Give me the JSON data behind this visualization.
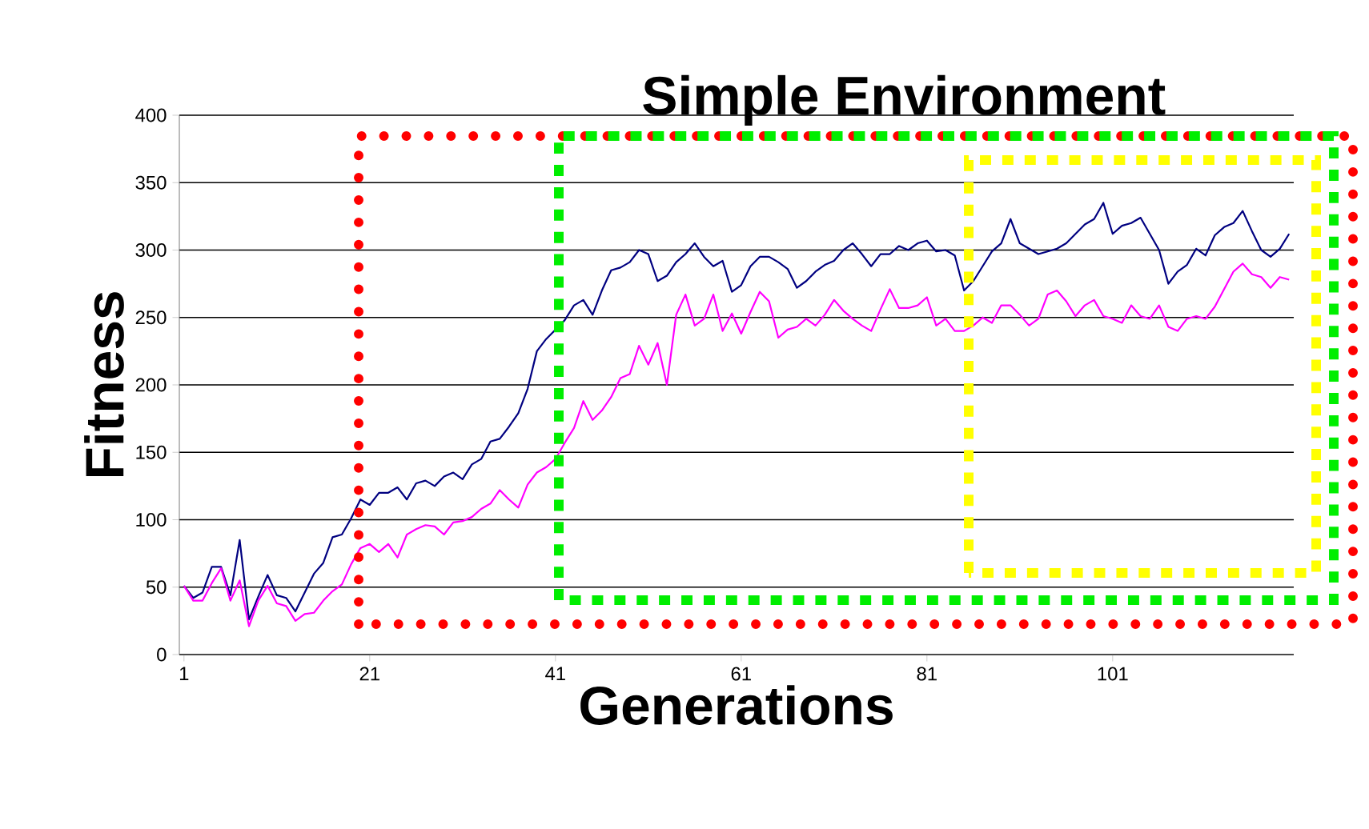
{
  "chart_data": {
    "type": "line",
    "title": "Simple Environment",
    "xlabel": "Generations",
    "ylabel": "Fitness",
    "x": [
      1,
      2,
      3,
      4,
      5,
      6,
      7,
      8,
      9,
      10,
      11,
      12,
      13,
      14,
      15,
      16,
      17,
      18,
      19,
      20,
      21,
      22,
      23,
      24,
      25,
      26,
      27,
      28,
      29,
      30,
      31,
      32,
      33,
      34,
      35,
      36,
      37,
      38,
      39,
      40,
      41,
      42,
      43,
      44,
      45,
      46,
      47,
      48,
      49,
      50,
      51,
      52,
      53,
      54,
      55,
      56,
      57,
      58,
      59,
      60,
      61,
      62,
      63,
      64,
      65,
      66,
      67,
      68,
      69,
      70,
      71,
      72,
      73,
      74,
      75,
      76,
      77,
      78,
      79,
      80,
      81,
      82,
      83,
      84,
      85,
      86,
      87,
      88,
      89,
      90,
      91,
      92,
      93,
      94,
      95,
      96,
      97,
      98,
      99,
      100,
      101,
      102,
      103,
      104,
      105,
      106,
      107,
      108,
      109,
      110,
      111,
      112,
      113,
      114,
      115,
      116,
      117,
      118,
      119,
      120
    ],
    "series": [
      {
        "color": "#000080",
        "values": [
          51,
          42,
          46,
          65,
          65,
          44,
          85,
          26,
          43,
          59,
          44,
          42,
          32,
          46,
          60,
          68,
          87,
          89,
          101,
          115,
          111,
          120,
          120,
          124,
          115,
          127,
          129,
          125,
          132,
          135,
          130,
          141,
          145,
          158,
          160,
          169,
          179,
          197,
          225,
          234,
          241,
          248,
          259,
          263,
          252,
          270,
          285,
          287,
          291,
          300,
          297,
          277,
          281,
          291,
          297,
          305,
          295,
          288,
          292,
          269,
          274,
          288,
          295,
          295,
          291,
          286,
          272,
          277,
          284,
          289,
          292,
          300,
          305,
          297,
          288,
          297,
          297,
          303,
          300,
          305,
          307,
          299,
          300,
          296,
          270,
          277,
          288,
          299,
          305,
          323,
          305,
          301,
          297,
          299,
          301,
          305,
          312,
          319,
          323,
          335,
          312,
          318,
          320,
          324,
          312,
          300,
          275,
          284,
          289,
          301,
          296,
          311,
          317,
          320,
          329,
          314,
          300,
          295,
          301,
          312
        ]
      },
      {
        "color": "#ff00ff",
        "values": [
          51,
          40,
          40,
          53,
          64,
          40,
          55,
          21,
          40,
          51,
          38,
          36,
          25,
          30,
          31,
          40,
          47,
          52,
          67,
          79,
          82,
          76,
          82,
          72,
          89,
          93,
          96,
          95,
          89,
          98,
          99,
          102,
          108,
          112,
          122,
          115,
          109,
          126,
          135,
          139,
          145,
          157,
          168,
          188,
          174,
          181,
          191,
          205,
          208,
          229,
          215,
          231,
          200,
          252,
          267,
          244,
          249,
          267,
          240,
          253,
          238,
          254,
          269,
          262,
          235,
          241,
          243,
          249,
          244,
          252,
          263,
          255,
          249,
          244,
          240,
          256,
          271,
          257,
          257,
          259,
          265,
          244,
          249,
          240,
          240,
          244,
          250,
          246,
          259,
          259,
          252,
          244,
          249,
          267,
          270,
          262,
          251,
          259,
          263,
          251,
          249,
          246,
          259,
          251,
          249,
          259,
          243,
          240,
          249,
          251,
          249,
          258,
          271,
          284,
          290,
          282,
          280,
          272,
          280,
          278
        ]
      }
    ],
    "xlim": [
      0.5,
      120.5
    ],
    "xticks": [
      1,
      21,
      41,
      61,
      81,
      101
    ],
    "ylim": [
      0,
      400
    ],
    "yticks": [
      0,
      50,
      100,
      150,
      200,
      250,
      300,
      350,
      400
    ],
    "grid": "y",
    "marker": "none",
    "line_style": "solid"
  }
}
